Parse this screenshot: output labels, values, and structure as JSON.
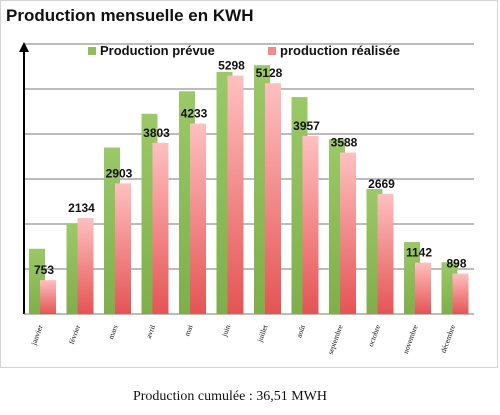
{
  "chart_data": {
    "type": "bar",
    "title": "Production mensuelle en KWH",
    "categories": [
      "janvier",
      "février",
      "mars",
      "avril",
      "mai",
      "juin",
      "juillet",
      "août",
      "septembre",
      "octobre",
      "novembre",
      "décembre"
    ],
    "series": [
      {
        "name": "Production prévue",
        "color": "#8fbf5a",
        "values": [
          1450,
          2000,
          3700,
          4450,
          4950,
          5380,
          5530,
          4820,
          3880,
          2780,
          1600,
          1150
        ]
      },
      {
        "name": "production réalisée",
        "color": "#f08b8b",
        "values": [
          753,
          2134,
          2903,
          3803,
          4233,
          5298,
          5128,
          3957,
          3588,
          2669,
          1142,
          898
        ]
      }
    ],
    "data_labels": [
      "753",
      "2134",
      "2903",
      "3803",
      "4233",
      "5298",
      "5128",
      "3957",
      "3588",
      "2669",
      "1142",
      "898"
    ],
    "ylim": [
      0,
      6000
    ],
    "grid": true,
    "legend_position": "top"
  },
  "footer": "Production cumulée : 36,51 MWH"
}
